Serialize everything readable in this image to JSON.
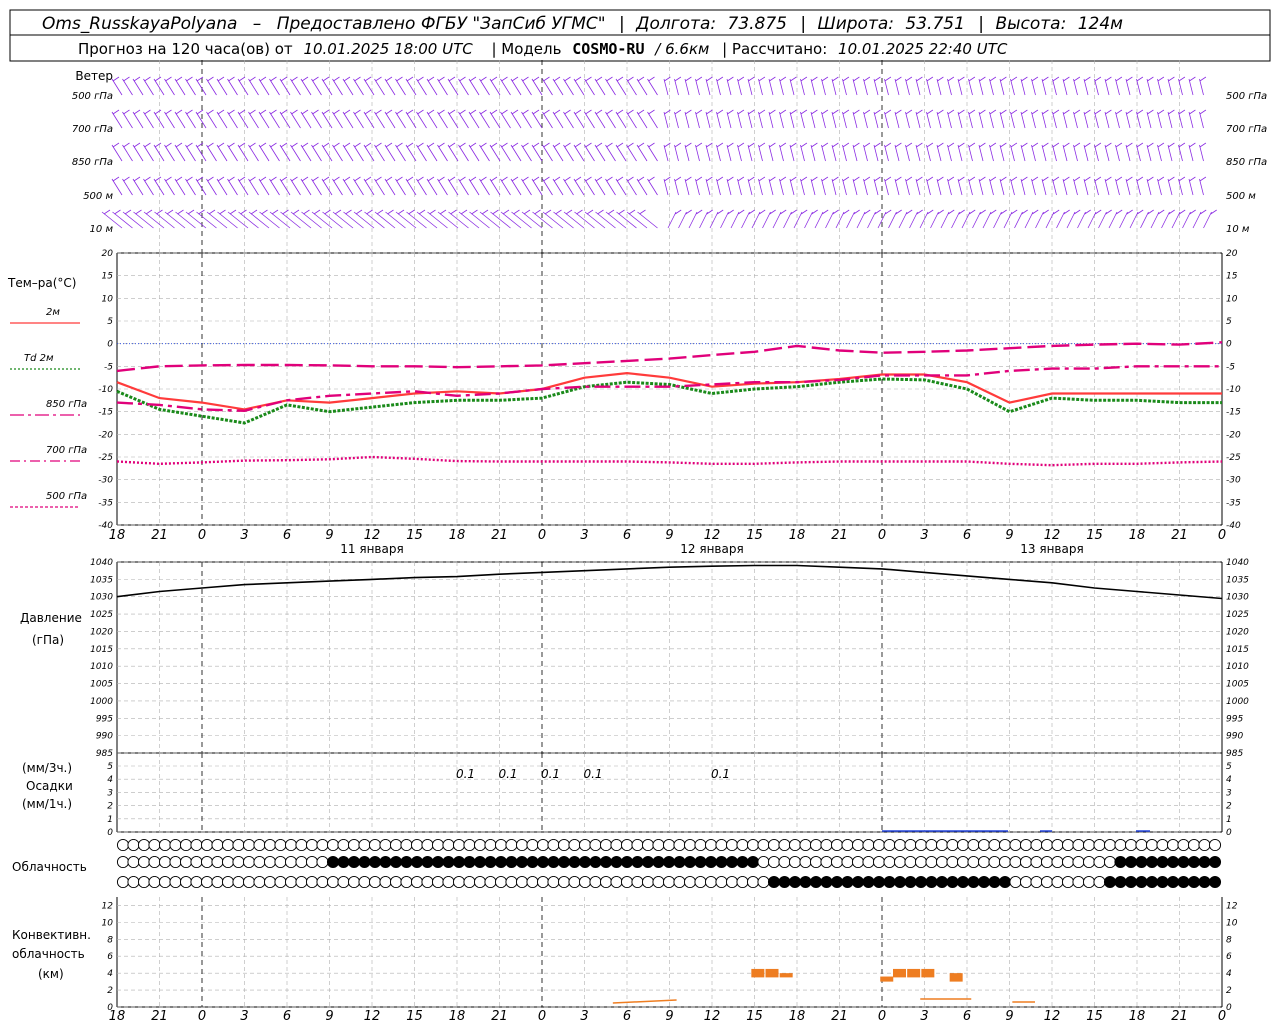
{
  "header": {
    "station": "Oms_RusskayaPolyana",
    "dash": "–",
    "provider": "Предоставлено ФГБУ \"ЗапСиб УГМС\"",
    "sep": "|",
    "lon_label": "Долгота:",
    "lon": "73.875",
    "lat_label": "Широта:",
    "lat": "53.751",
    "alt_label": "Высота:",
    "alt": "124м"
  },
  "subheader": {
    "forecast_label": "Прогноз на 120 часа(ов) от",
    "forecast_time": "10.01.2025 18:00 UTC",
    "model_label": "| Модель",
    "model": "COSMO-RU",
    "resolution": "/ 6.6км",
    "calc_label": "| Рассчитано:",
    "calc_time": "10.01.2025 22:40 UTC"
  },
  "wind_panel": {
    "title": "Ветер",
    "levels": [
      "500 гПа",
      "700 гПа",
      "850 гПа",
      "500 м",
      "10 м"
    ],
    "barb_color": "#8a2be2"
  },
  "temp_panel": {
    "title": "Тем–ра(°C)",
    "legend": [
      {
        "label": "2м",
        "color": "#ff3b3b",
        "dash": "solid"
      },
      {
        "label": "Td 2м",
        "color": "#1a8a1a",
        "dash": "dot"
      },
      {
        "label": "850 гПа",
        "color": "#e0007a",
        "dash": "dashdot"
      },
      {
        "label": "700 гПа",
        "color": "#e0007a",
        "dash": "dashdot2"
      },
      {
        "label": "500 гПа",
        "color": "#e0007a",
        "dash": "dotted"
      }
    ],
    "yticks": [
      "20",
      "15",
      "10",
      "5",
      "0",
      "-5",
      "-10",
      "-15",
      "-20",
      "-25",
      "-30",
      "-35",
      "-40"
    ]
  },
  "time_axis": {
    "hours": [
      "18",
      "21",
      "0",
      "3",
      "6",
      "9",
      "12",
      "15",
      "18",
      "21",
      "0",
      "3",
      "6",
      "9",
      "12",
      "15",
      "18",
      "21",
      "0",
      "3",
      "6",
      "9",
      "12",
      "15",
      "18",
      "21",
      "0"
    ],
    "dates": [
      "11 января",
      "12 января",
      "13 января"
    ]
  },
  "pressure_panel": {
    "title": "Давление",
    "unit": "(гПа)",
    "yticks": [
      "1040",
      "1035",
      "1030",
      "1025",
      "1020",
      "1015",
      "1010",
      "1005",
      "1000",
      "995",
      "990",
      "985"
    ]
  },
  "precip_panel": {
    "unit3": "(мм/3ч.)",
    "title": "Осадки",
    "unit1": "(мм/1ч.)",
    "yticks": [
      "5",
      "4",
      "3",
      "2",
      "1",
      "0"
    ],
    "labels": [
      {
        "hour": 24.6,
        "text": "0.1"
      },
      {
        "hour": 27.6,
        "text": "0.1"
      },
      {
        "hour": 30.6,
        "text": "0.1"
      },
      {
        "hour": 33.6,
        "text": "0.1"
      },
      {
        "hour": 42.6,
        "text": "0.1"
      }
    ]
  },
  "cloud_panel": {
    "title": "Облачность"
  },
  "conv_panel": {
    "title1": "Конвективн.",
    "title2": "облачность",
    "unit": "(км)",
    "yticks": [
      "12",
      "10",
      "8",
      "6",
      "4",
      "2",
      "0"
    ],
    "bar_color": "#ee7d21"
  },
  "chart_data": {
    "type": "line",
    "x_hours": [
      0,
      3,
      6,
      9,
      12,
      15,
      18,
      21,
      24,
      27,
      30,
      33,
      36,
      39,
      42,
      45,
      48,
      51,
      54,
      57,
      60,
      63,
      66,
      69,
      72,
      75,
      78
    ],
    "x_start": "10.01.2025 18:00 UTC",
    "series": [
      {
        "name": "2м",
        "values": [
          -8.5,
          -12,
          -13,
          -14.5,
          -12.5,
          -13,
          -12,
          -11,
          -10.5,
          -11,
          -10,
          -7.5,
          -6.5,
          -7.5,
          -9.5,
          -8.8,
          -8.5,
          -7.8,
          -6.8,
          -6.8,
          -8.5,
          -13,
          -11,
          -11,
          -11,
          -11,
          -11
        ]
      },
      {
        "name": "Td 2м",
        "values": [
          -10.5,
          -14.5,
          -16,
          -17.5,
          -13.5,
          -15,
          -14,
          -13,
          -12.5,
          -12.5,
          -12,
          -9.5,
          -8.5,
          -9,
          -11,
          -10,
          -9.5,
          -8.5,
          -7.8,
          -8,
          -10,
          -15,
          -12,
          -12.5,
          -12.5,
          -13,
          -13
        ]
      },
      {
        "name": "850 гПа",
        "values": [
          -13,
          -13.5,
          -14.5,
          -14.8,
          -12.5,
          -11.5,
          -11,
          -10.5,
          -11.5,
          -11,
          -10,
          -9.5,
          -9.5,
          -9.5,
          -9,
          -8.5,
          -8.5,
          -8,
          -7,
          -7,
          -7,
          -6,
          -5.5,
          -5.5,
          -5,
          -5,
          -5
        ]
      },
      {
        "name": "700 гПа",
        "values": [
          -6,
          -5,
          -4.8,
          -4.7,
          -4.7,
          -4.8,
          -5,
          -5,
          -5.2,
          -5,
          -4.8,
          -4.3,
          -3.8,
          -3.3,
          -2.5,
          -1.8,
          -0.5,
          -1.5,
          -2,
          -1.8,
          -1.5,
          -1,
          -0.5,
          -0.2,
          0,
          -0.2,
          0.3
        ]
      },
      {
        "name": "500 гПа",
        "values": [
          -26,
          -26.5,
          -26.2,
          -25.8,
          -25.7,
          -25.5,
          -25,
          -25.4,
          -25.9,
          -26,
          -26,
          -26,
          -26,
          -26.2,
          -26.5,
          -26.5,
          -26.2,
          -26,
          -26,
          -26,
          -26,
          -26.5,
          -26.8,
          -26.5,
          -26.5,
          -26.2,
          -26
        ]
      },
      {
        "name": "Давление",
        "values": [
          1030,
          1031.5,
          1032.5,
          1033.5,
          1034,
          1034.5,
          1035,
          1035.5,
          1035.8,
          1036.5,
          1037,
          1037.5,
          1038,
          1038.5,
          1038.8,
          1039,
          1039,
          1038.5,
          1038,
          1037,
          1036,
          1035,
          1034,
          1032.5,
          1031.5,
          1030.5,
          1029.5
        ]
      }
    ],
    "temp_ylim": [
      -40,
      20
    ],
    "pressure_ylim": [
      985,
      1040
    ],
    "conv_bars": [
      {
        "hour": 45.2,
        "base": 3.5,
        "top": 4.5
      },
      {
        "hour": 46.2,
        "base": 3.5,
        "top": 4.5
      },
      {
        "hour": 47.2,
        "base": 3.5,
        "top": 4.0
      },
      {
        "hour": 54.3,
        "base": 3.0,
        "top": 3.6
      },
      {
        "hour": 55.2,
        "base": 3.5,
        "top": 4.5
      },
      {
        "hour": 56.2,
        "base": 3.5,
        "top": 4.5
      },
      {
        "hour": 57.2,
        "base": 3.5,
        "top": 4.5
      },
      {
        "hour": 59.2,
        "base": 3.0,
        "top": 4.0
      }
    ]
  }
}
